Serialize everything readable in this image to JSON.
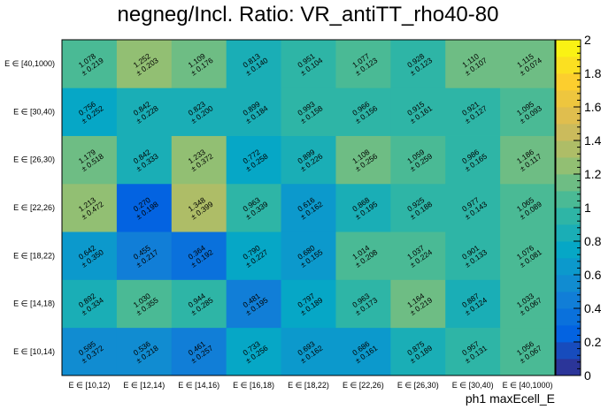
{
  "chart_data": {
    "type": "heatmap",
    "title": "negneg/Incl. Ratio: VR_antiTT_rho40-80",
    "xlabel": "ph1 maxEcell_E",
    "ylabel": "",
    "x_categories": [
      "E ∈ [10,12)",
      "E ∈ [12,14)",
      "E ∈ [14,16)",
      "E ∈ [16,18)",
      "E ∈ [18,22)",
      "E ∈ [22,26)",
      "E ∈ [26,30)",
      "E ∈ [30,40)",
      "E ∈ [40,1000)"
    ],
    "y_categories": [
      "E ∈ [10,14)",
      "E ∈ [14,18)",
      "E ∈ [18,22)",
      "E ∈ [22,26)",
      "E ∈ [26,30)",
      "E ∈ [30,40)",
      "E ∈ [40,1000)"
    ],
    "zlim": [
      0,
      2
    ],
    "z_ticks": [
      "0",
      "0.2",
      "0.4",
      "0.6",
      "0.8",
      "1",
      "1.2",
      "1.4",
      "1.6",
      "1.8",
      "2"
    ],
    "cells": [
      [
        {
          "v": "0.595",
          "e": "± 0.372"
        },
        {
          "v": "0.536",
          "e": "± 0.218"
        },
        {
          "v": "0.461",
          "e": "± 0.257"
        },
        {
          "v": "0.733",
          "e": "± 0.256"
        },
        {
          "v": "0.693",
          "e": "± 0.162"
        },
        {
          "v": "0.686",
          "e": "± 0.161"
        },
        {
          "v": "0.875",
          "e": "± 0.189"
        },
        {
          "v": "0.957",
          "e": "± 0.131"
        },
        {
          "v": "1.056",
          "e": "± 0.067"
        }
      ],
      [
        {
          "v": "0.892",
          "e": "± 0.334"
        },
        {
          "v": "1.030",
          "e": "± 0.355"
        },
        {
          "v": "0.944",
          "e": "± 0.285"
        },
        {
          "v": "0.481",
          "e": "± 0.195"
        },
        {
          "v": "0.797",
          "e": "± 0.189"
        },
        {
          "v": "0.963",
          "e": "± 0.173"
        },
        {
          "v": "1.164",
          "e": "± 0.219"
        },
        {
          "v": "0.887",
          "e": "± 0.124"
        },
        {
          "v": "1.033",
          "e": "± 0.067"
        }
      ],
      [
        {
          "v": "0.642",
          "e": "± 0.350"
        },
        {
          "v": "0.455",
          "e": "± 0.217"
        },
        {
          "v": "0.364",
          "e": "± 0.192"
        },
        {
          "v": "0.790",
          "e": "± 0.227"
        },
        {
          "v": "0.680",
          "e": "± 0.155"
        },
        {
          "v": "1.014",
          "e": "± 0.208"
        },
        {
          "v": "1.037",
          "e": "± 0.224"
        },
        {
          "v": "0.901",
          "e": "± 0.133"
        },
        {
          "v": "1.076",
          "e": "± 0.081"
        }
      ],
      [
        {
          "v": "1.213",
          "e": "± 0.472"
        },
        {
          "v": "0.270",
          "e": "± 0.198"
        },
        {
          "v": "1.348",
          "e": "± 0.399"
        },
        {
          "v": "0.963",
          "e": "± 0.339"
        },
        {
          "v": "0.616",
          "e": "± 0.162"
        },
        {
          "v": "0.868",
          "e": "± 0.195"
        },
        {
          "v": "0.925",
          "e": "± 0.188"
        },
        {
          "v": "0.977",
          "e": "± 0.143"
        },
        {
          "v": "1.065",
          "e": "± 0.089"
        }
      ],
      [
        {
          "v": "1.179",
          "e": "± 0.518"
        },
        {
          "v": "0.842",
          "e": "± 0.333"
        },
        {
          "v": "1.233",
          "e": "± 0.372"
        },
        {
          "v": "0.772",
          "e": "± 0.258"
        },
        {
          "v": "0.899",
          "e": "± 0.226"
        },
        {
          "v": "1.108",
          "e": "± 0.256"
        },
        {
          "v": "1.059",
          "e": "± 0.259"
        },
        {
          "v": "0.986",
          "e": "± 0.165"
        },
        {
          "v": "1.186",
          "e": "± 0.117"
        }
      ],
      [
        {
          "v": "0.756",
          "e": "± 0.252"
        },
        {
          "v": "0.842",
          "e": "± 0.228"
        },
        {
          "v": "0.823",
          "e": "± 0.200"
        },
        {
          "v": "0.899",
          "e": "± 0.184"
        },
        {
          "v": "0.993",
          "e": "± 0.158"
        },
        {
          "v": "0.966",
          "e": "± 0.156"
        },
        {
          "v": "0.915",
          "e": "± 0.161"
        },
        {
          "v": "0.921",
          "e": "± 0.127"
        },
        {
          "v": "1.095",
          "e": "± 0.093"
        }
      ],
      [
        {
          "v": "1.078",
          "e": "± 0.219"
        },
        {
          "v": "1.252",
          "e": "± 0.203"
        },
        {
          "v": "1.109",
          "e": "± 0.176"
        },
        {
          "v": "0.813",
          "e": "± 0.140"
        },
        {
          "v": "0.951",
          "e": "± 0.104"
        },
        {
          "v": "1.077",
          "e": "± 0.123"
        },
        {
          "v": "0.928",
          "e": "± 0.123"
        },
        {
          "v": "1.110",
          "e": "± 0.107"
        },
        {
          "v": "1.115",
          "e": "± 0.074"
        }
      ]
    ],
    "colormap": [
      "#352a87",
      "#0363e1",
      "#1485d4",
      "#06a7c6",
      "#38b99e",
      "#92bf73",
      "#d9ba56",
      "#fcce2e",
      "#f9fb0e"
    ]
  }
}
